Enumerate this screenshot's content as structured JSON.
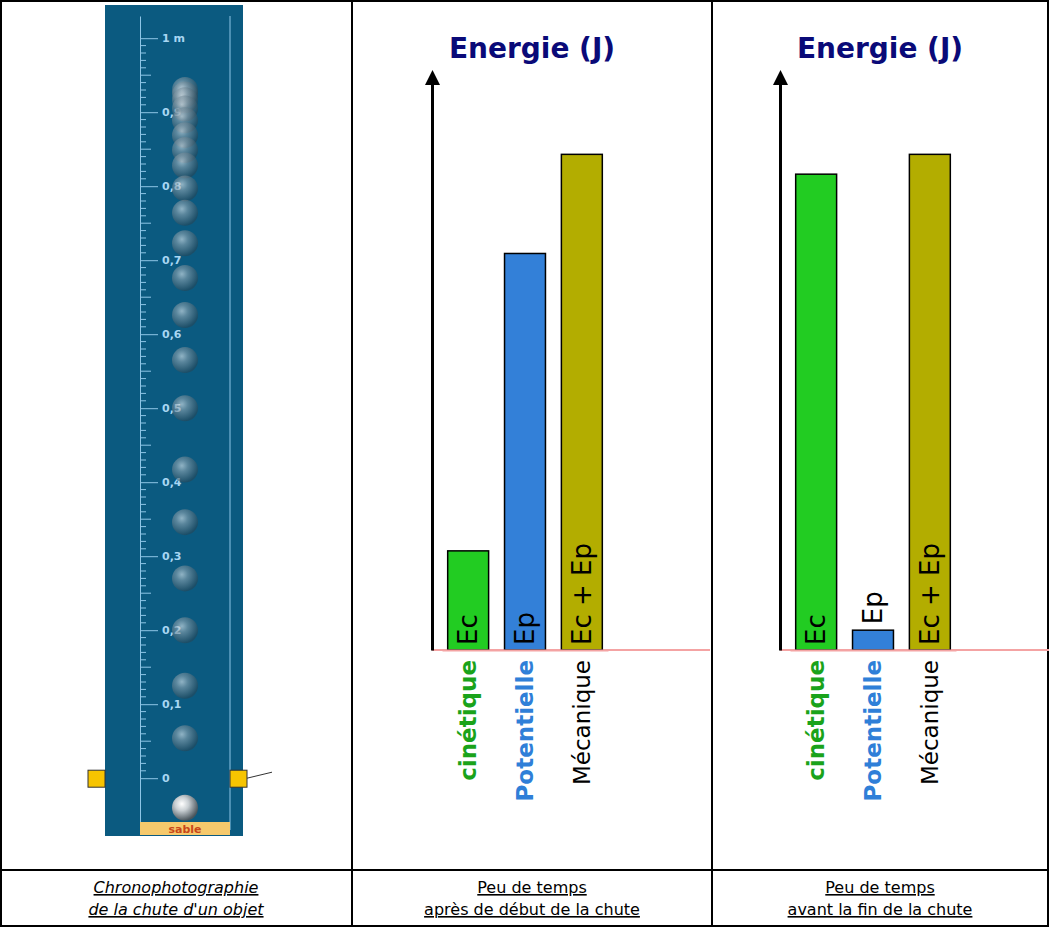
{
  "chronophotography": {
    "ylim": [
      -0.07,
      1.03
    ],
    "yticks": [
      {
        "value": 0,
        "label": "0"
      },
      {
        "value": 0.1,
        "label": "0,1"
      },
      {
        "value": 0.2,
        "label": "0,2"
      },
      {
        "value": 0.3,
        "label": "0,3"
      },
      {
        "value": 0.4,
        "label": "0,4"
      },
      {
        "value": 0.5,
        "label": "0,5"
      },
      {
        "value": 0.6,
        "label": "0,6"
      },
      {
        "value": 0.7,
        "label": "0,7"
      },
      {
        "value": 0.8,
        "label": "0,8"
      },
      {
        "value": 0.9,
        "label": "0,9"
      },
      {
        "value": 1,
        "label": "1 m"
      }
    ],
    "minor_ticks": [
      0.01,
      0.02,
      0.03,
      0.04,
      0.05,
      0.06,
      0.07,
      0.08,
      0.09,
      0.11,
      0.12,
      0.13,
      0.14,
      0.15,
      0.16,
      0.17,
      0.18,
      0.19,
      0.21,
      0.22,
      0.23,
      0.24,
      0.25,
      0.26,
      0.27,
      0.28,
      0.29,
      0.31,
      0.32,
      0.33,
      0.34,
      0.35,
      0.36,
      0.37,
      0.38,
      0.39,
      0.41,
      0.42,
      0.43,
      0.44,
      0.45,
      0.46,
      0.47,
      0.48,
      0.49,
      0.51,
      0.52,
      0.53,
      0.54,
      0.55,
      0.56,
      0.57,
      0.58,
      0.59,
      0.61,
      0.62,
      0.63,
      0.64,
      0.65,
      0.66,
      0.67,
      0.68,
      0.69,
      0.71,
      0.72,
      0.73,
      0.74,
      0.75,
      0.76,
      0.77,
      0.78,
      0.79,
      0.81,
      0.82,
      0.83,
      0.84,
      0.85,
      0.86,
      0.87,
      0.88,
      0.89,
      0.91,
      0.92,
      0.93,
      0.94,
      0.95,
      0.96,
      0.97,
      0.98,
      0.99
    ],
    "positions": [
      0.93,
      0.924,
      0.916,
      0.905,
      0.889,
      0.869,
      0.849,
      0.828,
      0.797,
      0.764,
      0.723,
      0.676,
      0.626,
      0.565,
      0.5,
      0.417,
      0.346,
      0.27,
      0.2,
      0.125,
      0.054,
      -0.04
    ],
    "ground_label": "sable",
    "caption": [
      "Chronophotographie",
      "de la chute d'un objet"
    ]
  },
  "chart_data": [
    {
      "type": "bar",
      "title": "Energie (J)",
      "categories": [
        "cinétique",
        "Potentielle",
        "Mécanique"
      ],
      "bar_labels": [
        "Ec",
        "Ep",
        "Ec + Ep"
      ],
      "values": [
        20,
        80,
        100
      ],
      "colors": [
        "#22cc22",
        "#3380d8",
        "#b3ad00"
      ],
      "ylim": [
        0,
        115
      ],
      "tick_labels": "x",
      "caption": [
        "Peu de temps",
        "après de début de la chute"
      ]
    },
    {
      "type": "bar",
      "title": "Energie (J)",
      "categories": [
        "cinétique",
        "Potentielle",
        "Mécanique"
      ],
      "bar_labels": [
        "Ec",
        "Ep",
        "Ec + Ep"
      ],
      "values": [
        96,
        4,
        100
      ],
      "colors": [
        "#22cc22",
        "#3380d8",
        "#b3ad00"
      ],
      "ylim": [
        0,
        115
      ],
      "tick_labels": "x",
      "caption": [
        "Peu de temps",
        "avant la fin de la chute"
      ]
    }
  ]
}
